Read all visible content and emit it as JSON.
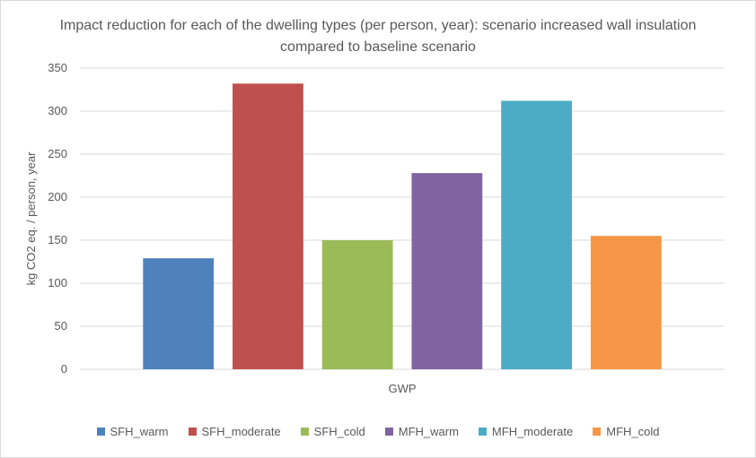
{
  "chart_data": {
    "type": "bar",
    "title": "Impact reduction for each of the dwelling types (per person, year): scenario increased wall insulation compared to baseline scenario",
    "xlabel": "GWP",
    "ylabel": "kg CO2 eq. / person, year",
    "categories": [
      "GWP"
    ],
    "ylim": [
      0,
      350
    ],
    "yticks": [
      0,
      50,
      100,
      150,
      200,
      250,
      300,
      350
    ],
    "grid": true,
    "legend_position": "bottom",
    "series": [
      {
        "name": "SFH_warm",
        "values": [
          129
        ],
        "color": "#4F81BD"
      },
      {
        "name": "SFH_moderate",
        "values": [
          332
        ],
        "color": "#C0504D"
      },
      {
        "name": "SFH_cold",
        "values": [
          150
        ],
        "color": "#9BBB59"
      },
      {
        "name": "MFH_warm",
        "values": [
          228
        ],
        "color": "#8064A2"
      },
      {
        "name": "MFH_moderate",
        "values": [
          312
        ],
        "color": "#4BACC6"
      },
      {
        "name": "MFH_cold",
        "values": [
          155
        ],
        "color": "#F79646"
      }
    ]
  }
}
